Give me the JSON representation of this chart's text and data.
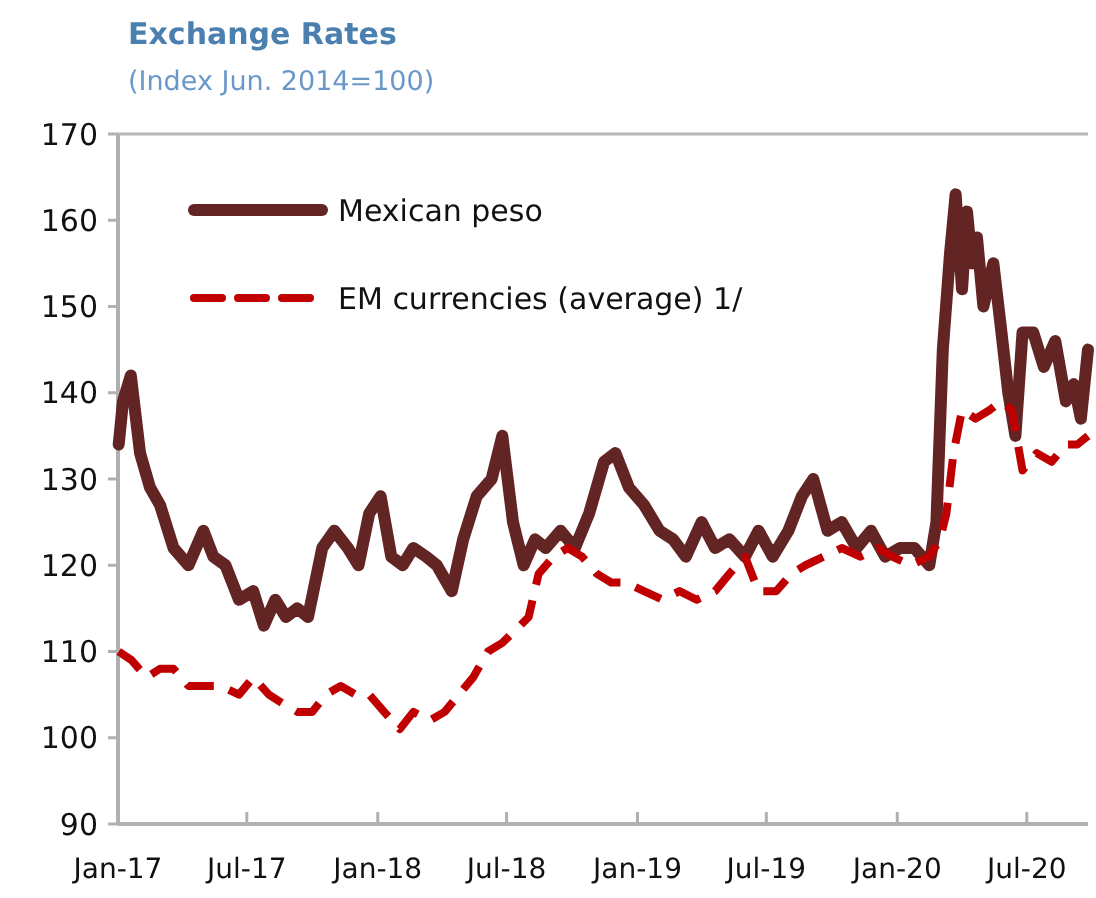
{
  "chart_data": {
    "type": "line",
    "title": "Exchange Rates",
    "subtitle": "(Index Jun. 2014=100)",
    "ylim": [
      90,
      170
    ],
    "yticks": [
      90,
      100,
      110,
      120,
      130,
      140,
      150,
      160,
      170
    ],
    "xlim": [
      "2017-01-01",
      "2020-09-25"
    ],
    "xticks": [
      {
        "value": "2017-01-01",
        "label": "Jan-17"
      },
      {
        "value": "2017-07-01",
        "label": "Jul-17"
      },
      {
        "value": "2018-01-01",
        "label": "Jan-18"
      },
      {
        "value": "2018-07-01",
        "label": "Jul-18"
      },
      {
        "value": "2019-01-01",
        "label": "Jan-19"
      },
      {
        "value": "2019-07-01",
        "label": "Jul-19"
      },
      {
        "value": "2020-01-01",
        "label": "Jan-20"
      },
      {
        "value": "2020-07-01",
        "label": "Jul-20"
      }
    ],
    "grid": false,
    "legend": "top left",
    "series": [
      {
        "name": "Mexican peso",
        "color": "#632523",
        "line_style": "solid",
        "x": [
          "2017-01-02",
          "2017-01-08",
          "2017-01-19",
          "2017-02-01",
          "2017-02-15",
          "2017-03-01",
          "2017-03-20",
          "2017-04-10",
          "2017-05-01",
          "2017-05-15",
          "2017-06-01",
          "2017-06-20",
          "2017-07-10",
          "2017-07-25",
          "2017-08-10",
          "2017-08-25",
          "2017-09-10",
          "2017-09-25",
          "2017-10-15",
          "2017-11-01",
          "2017-11-20",
          "2017-12-05",
          "2017-12-20",
          "2018-01-05",
          "2018-01-20",
          "2018-02-05",
          "2018-02-20",
          "2018-03-10",
          "2018-03-25",
          "2018-04-15",
          "2018-05-01",
          "2018-05-20",
          "2018-06-10",
          "2018-06-25",
          "2018-07-10",
          "2018-07-25",
          "2018-08-10",
          "2018-08-25",
          "2018-09-15",
          "2018-10-05",
          "2018-10-25",
          "2018-11-15",
          "2018-12-01",
          "2018-12-20",
          "2019-01-10",
          "2019-02-01",
          "2019-02-20",
          "2019-03-10",
          "2019-04-01",
          "2019-04-20",
          "2019-05-10",
          "2019-06-01",
          "2019-06-20",
          "2019-07-10",
          "2019-08-01",
          "2019-08-20",
          "2019-09-05",
          "2019-09-25",
          "2019-10-15",
          "2019-11-05",
          "2019-11-25",
          "2019-12-15",
          "2020-01-05",
          "2020-01-25",
          "2020-02-15",
          "2020-02-25",
          "2020-03-05",
          "2020-03-15",
          "2020-03-23",
          "2020-04-01",
          "2020-04-08",
          "2020-04-15",
          "2020-04-22",
          "2020-05-01",
          "2020-05-15",
          "2020-05-25",
          "2020-06-05",
          "2020-06-15",
          "2020-06-25",
          "2020-07-10",
          "2020-07-25",
          "2020-08-10",
          "2020-08-25",
          "2020-09-05",
          "2020-09-15",
          "2020-09-25"
        ],
        "values": [
          134,
          139,
          142,
          133,
          129,
          127,
          122,
          120,
          124,
          121,
          120,
          116,
          117,
          113,
          116,
          114,
          115,
          114,
          122,
          124,
          122,
          120,
          126,
          128,
          121,
          120,
          122,
          121,
          120,
          117,
          123,
          128,
          130,
          135,
          125,
          120,
          123,
          122,
          124,
          122,
          126,
          132,
          133,
          129,
          127,
          124,
          123,
          121,
          125,
          122,
          123,
          121,
          124,
          121,
          124,
          128,
          130,
          124,
          125,
          122,
          124,
          121,
          122,
          122,
          120,
          125,
          145,
          156,
          163,
          152,
          161,
          155,
          158,
          150,
          155,
          148,
          140,
          135,
          147,
          147,
          143,
          146,
          139,
          141,
          137,
          145
        ]
      },
      {
        "name": "EM currencies (average) 1/",
        "color": "#c00000",
        "line_style": "dashed",
        "x": [
          "2017-01-02",
          "2017-01-20",
          "2017-02-10",
          "2017-03-01",
          "2017-03-20",
          "2017-04-10",
          "2017-05-01",
          "2017-05-25",
          "2017-06-20",
          "2017-07-10",
          "2017-08-01",
          "2017-08-20",
          "2017-09-10",
          "2017-10-01",
          "2017-10-20",
          "2017-11-10",
          "2017-12-01",
          "2017-12-20",
          "2018-01-10",
          "2018-02-01",
          "2018-02-20",
          "2018-03-15",
          "2018-04-05",
          "2018-04-25",
          "2018-05-15",
          "2018-06-05",
          "2018-06-25",
          "2018-07-20",
          "2018-08-01",
          "2018-08-15",
          "2018-09-05",
          "2018-09-25",
          "2018-10-15",
          "2018-11-05",
          "2018-11-25",
          "2018-12-15",
          "2019-01-10",
          "2019-02-05",
          "2019-03-01",
          "2019-03-25",
          "2019-04-20",
          "2019-05-10",
          "2019-06-01",
          "2019-06-20",
          "2019-07-15",
          "2019-08-05",
          "2019-08-25",
          "2019-09-20",
          "2019-10-15",
          "2019-11-10",
          "2019-12-05",
          "2019-12-25",
          "2020-01-20",
          "2020-02-15",
          "2020-03-01",
          "2020-03-10",
          "2020-03-20",
          "2020-04-01",
          "2020-04-20",
          "2020-05-10",
          "2020-05-25",
          "2020-06-10",
          "2020-06-25",
          "2020-07-15",
          "2020-08-05",
          "2020-08-25",
          "2020-09-10",
          "2020-09-25"
        ],
        "values": [
          110,
          109,
          107,
          108,
          108,
          106,
          106,
          106,
          105,
          107,
          105,
          104,
          103,
          103,
          105,
          106,
          105,
          105,
          103,
          101,
          103,
          102,
          103,
          105,
          107,
          110,
          111,
          113,
          114,
          119,
          121,
          122,
          121,
          119,
          118,
          118,
          117,
          116,
          117,
          116,
          117,
          119,
          121,
          117,
          117,
          119,
          120,
          121,
          122,
          121,
          122,
          121,
          120,
          121,
          123,
          126,
          133,
          138,
          137,
          138,
          139,
          138,
          131,
          133,
          132,
          134,
          134,
          135
        ]
      }
    ]
  }
}
